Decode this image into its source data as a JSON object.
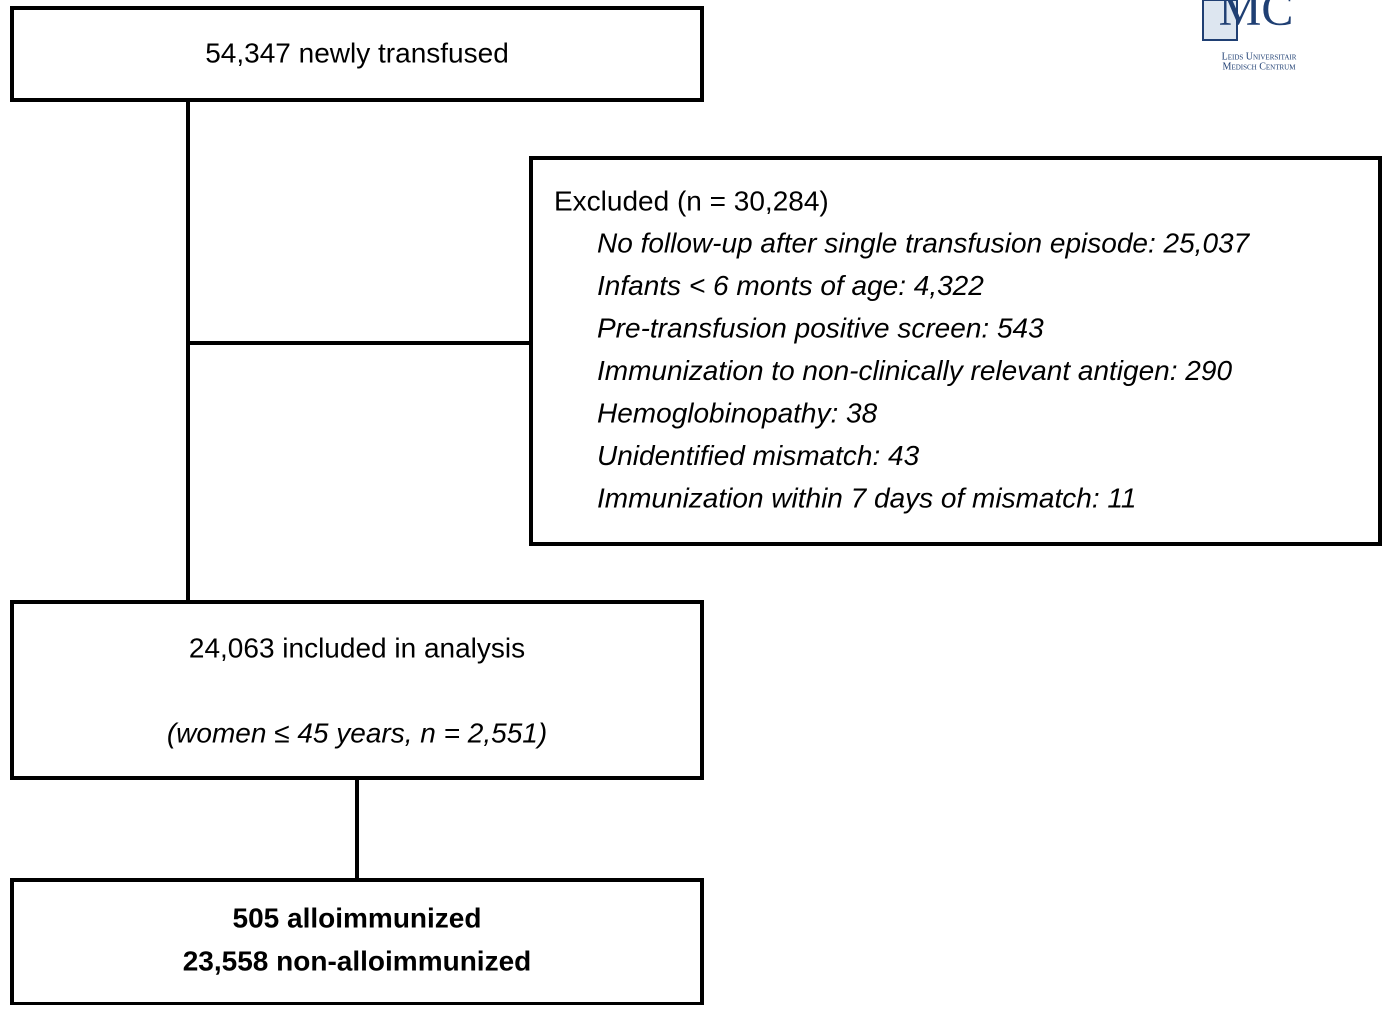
{
  "logo": {
    "mark": "MC",
    "line1": "Leids Universitair",
    "line2": "Medisch Centrum"
  },
  "start": {
    "label": "54,347 newly transfused"
  },
  "excluded": {
    "title": "Excluded (n = 30,284)",
    "items": [
      "No follow-up after single transfusion episode: 25,037",
      "Infants < 6 monts of age: 4,322",
      "Pre-transfusion positive screen: 543",
      "Immunization to non-clinically relevant antigen: 290",
      "Hemoglobinopathy: 38",
      "Unidentified mismatch: 43",
      "Immunization within 7 days of mismatch: 11"
    ]
  },
  "included": {
    "label": "24,063 included in analysis",
    "note": "(women ≤ 45 years, n = 2,551)"
  },
  "outcome": {
    "lines": [
      "505 alloimmunized",
      "23,558 non-alloimmunized"
    ]
  }
}
